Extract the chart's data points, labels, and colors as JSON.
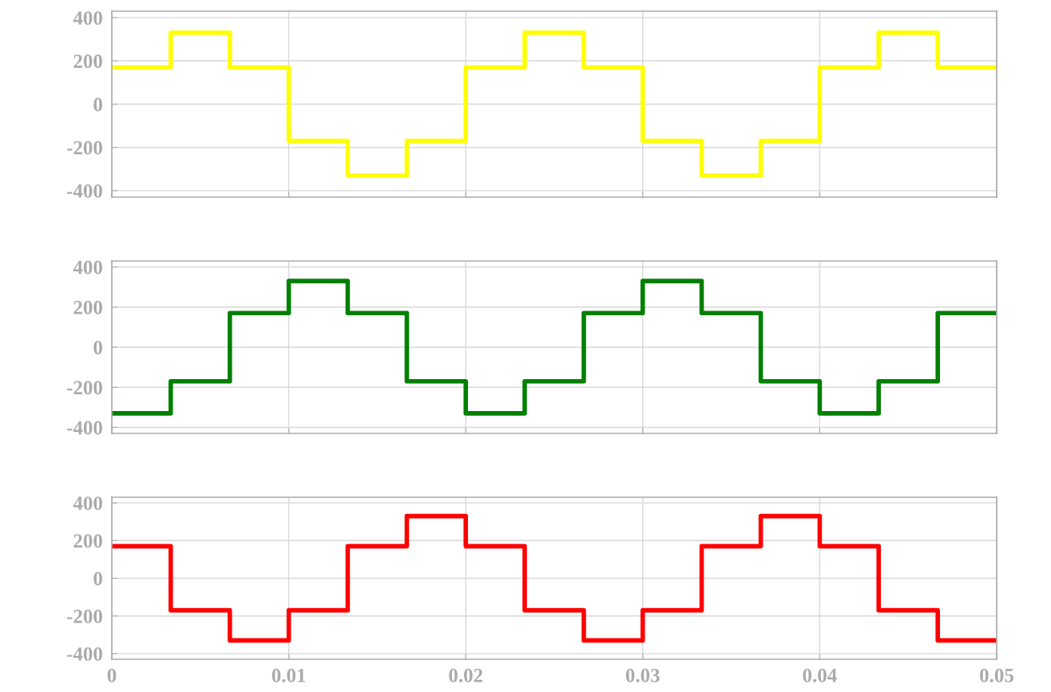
{
  "chart_data": [
    {
      "type": "step",
      "x": [
        0,
        0.00333,
        0.00667,
        0.01,
        0.01333,
        0.01667,
        0.02,
        0.02333,
        0.02667,
        0.03,
        0.03333,
        0.03667,
        0.04,
        0.04333,
        0.04667,
        0.05
      ],
      "series": [
        {
          "color": "#ffff00",
          "values": [
            170,
            330,
            170,
            -170,
            -330,
            -170,
            170,
            330,
            170,
            -170,
            -330,
            -170,
            170,
            330,
            170,
            170
          ]
        }
      ],
      "xlim": [
        0,
        0.05
      ],
      "xticks": [
        0,
        0.01,
        0.02,
        0.03,
        0.04,
        0.05
      ],
      "ylim": [
        -430,
        430
      ],
      "yticks": [
        -400,
        -200,
        0,
        200,
        400
      ],
      "grid": true,
      "tick_labels": "y"
    },
    {
      "type": "step",
      "x": [
        0,
        0.00333,
        0.00667,
        0.01,
        0.01333,
        0.01667,
        0.02,
        0.02333,
        0.02667,
        0.03,
        0.03333,
        0.03667,
        0.04,
        0.04333,
        0.04667,
        0.05
      ],
      "series": [
        {
          "color": "#008000",
          "values": [
            -330,
            -170,
            170,
            330,
            170,
            -170,
            -330,
            -170,
            170,
            330,
            170,
            -170,
            -330,
            -170,
            170,
            170
          ]
        }
      ],
      "xlim": [
        0,
        0.05
      ],
      "xticks": [
        0,
        0.01,
        0.02,
        0.03,
        0.04,
        0.05
      ],
      "ylim": [
        -430,
        430
      ],
      "yticks": [
        -400,
        -200,
        0,
        200,
        400
      ],
      "grid": true,
      "tick_labels": "y"
    },
    {
      "type": "step",
      "x": [
        0,
        0.00333,
        0.00667,
        0.01,
        0.01333,
        0.01667,
        0.02,
        0.02333,
        0.02667,
        0.03,
        0.03333,
        0.03667,
        0.04,
        0.04333,
        0.04667,
        0.05
      ],
      "series": [
        {
          "color": "#ff0000",
          "values": [
            170,
            -170,
            -330,
            -170,
            170,
            330,
            170,
            -170,
            -330,
            -170,
            170,
            330,
            170,
            -170,
            -330,
            -330
          ]
        }
      ],
      "xlim": [
        0,
        0.05
      ],
      "xticks": [
        0,
        0.01,
        0.02,
        0.03,
        0.04,
        0.05
      ],
      "ylim": [
        -430,
        430
      ],
      "yticks": [
        -400,
        -200,
        0,
        200,
        400
      ],
      "grid": true
    }
  ]
}
